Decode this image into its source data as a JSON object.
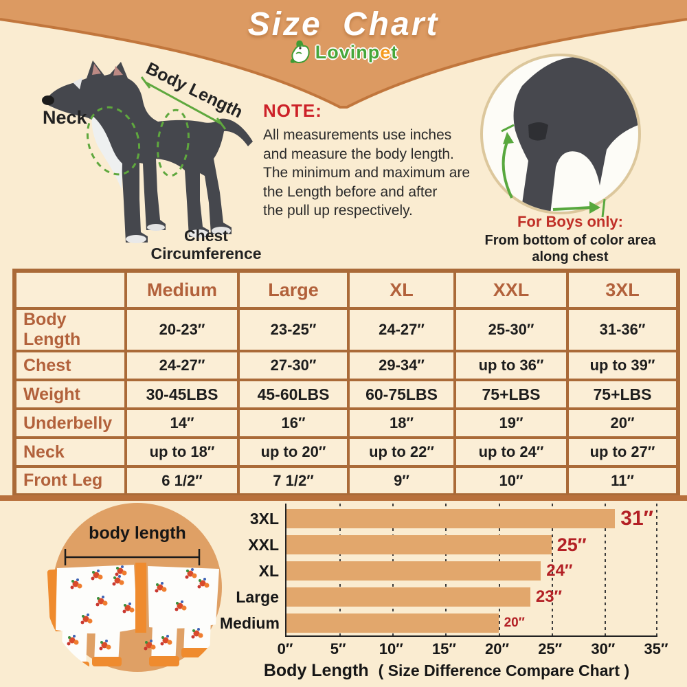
{
  "header": {
    "title": "Size Chart",
    "brand_prefix": "Lovinp",
    "brand_accent": "e",
    "brand_suffix": "t"
  },
  "diagram": {
    "neck_label": "Neck",
    "body_length_label": "Body Length",
    "chest_label_line1": "Chest",
    "chest_label_line2": "Circumference"
  },
  "note": {
    "heading": "NOTE:",
    "lines": [
      "All measurements use inches",
      "and measure the body length.",
      "The minimum and maximum are",
      "the Length before and after",
      "the pull up respectively."
    ]
  },
  "boys_note": {
    "heading": "For Boys only:",
    "line1": "From bottom of color area",
    "line2": "along chest"
  },
  "table": {
    "size_headers": [
      "Medium",
      "Large",
      "XL",
      "XXL",
      "3XL"
    ],
    "rows": [
      {
        "label": "Body Length",
        "values": [
          "20-23″",
          "23-25″",
          "24-27″",
          "25-30″",
          "31-36″"
        ]
      },
      {
        "label": "Chest",
        "values": [
          "24-27″",
          "27-30″",
          "29-34″",
          "up to 36″",
          "up to 39″"
        ]
      },
      {
        "label": "Weight",
        "values": [
          "30-45LBS",
          "45-60LBS",
          "60-75LBS",
          "75+LBS",
          "75+LBS"
        ]
      },
      {
        "label": "Underbelly",
        "values": [
          "14″",
          "16″",
          "18″",
          "19″",
          "20″"
        ]
      },
      {
        "label": "Neck",
        "values": [
          "up to 18″",
          "up to 20″",
          "up to 22″",
          "up to 24″",
          "up to 27″"
        ]
      },
      {
        "label": "Front Leg",
        "values": [
          "6 1/2″",
          "7 1/2″",
          "9″",
          "10″",
          "11″"
        ]
      }
    ]
  },
  "garment": {
    "label": "body length"
  },
  "chart_data": {
    "type": "bar",
    "orientation": "horizontal",
    "title": "",
    "categories": [
      "3XL",
      "XXL",
      "XL",
      "Large",
      "Medium"
    ],
    "values": [
      31,
      25,
      24,
      23,
      20
    ],
    "value_labels": [
      "31″",
      "25″",
      "24″",
      "23″",
      "20″"
    ],
    "xlim": [
      0,
      35
    ],
    "tick_labels": [
      "0″",
      "5″",
      "10″",
      "15″",
      "20″",
      "25″",
      "30″",
      "35″"
    ],
    "xlabel": "Body Length",
    "xlabel_note": "( Size Difference Compare Chart )",
    "grid": "dashed-vertical",
    "legend": "none",
    "bar_color": "#e2a76c",
    "value_label_color": "#b32025"
  },
  "colors": {
    "background": "#faecd1",
    "header_band": "#dc9a62",
    "band_edge": "#c1763c",
    "table_border": "#aa6a38",
    "heading_text": "#b2613b",
    "note_red": "#cc2128",
    "annotation_green": "#5fa83e",
    "dog_body": "#45474d",
    "garment_circle": "#dfa065"
  }
}
